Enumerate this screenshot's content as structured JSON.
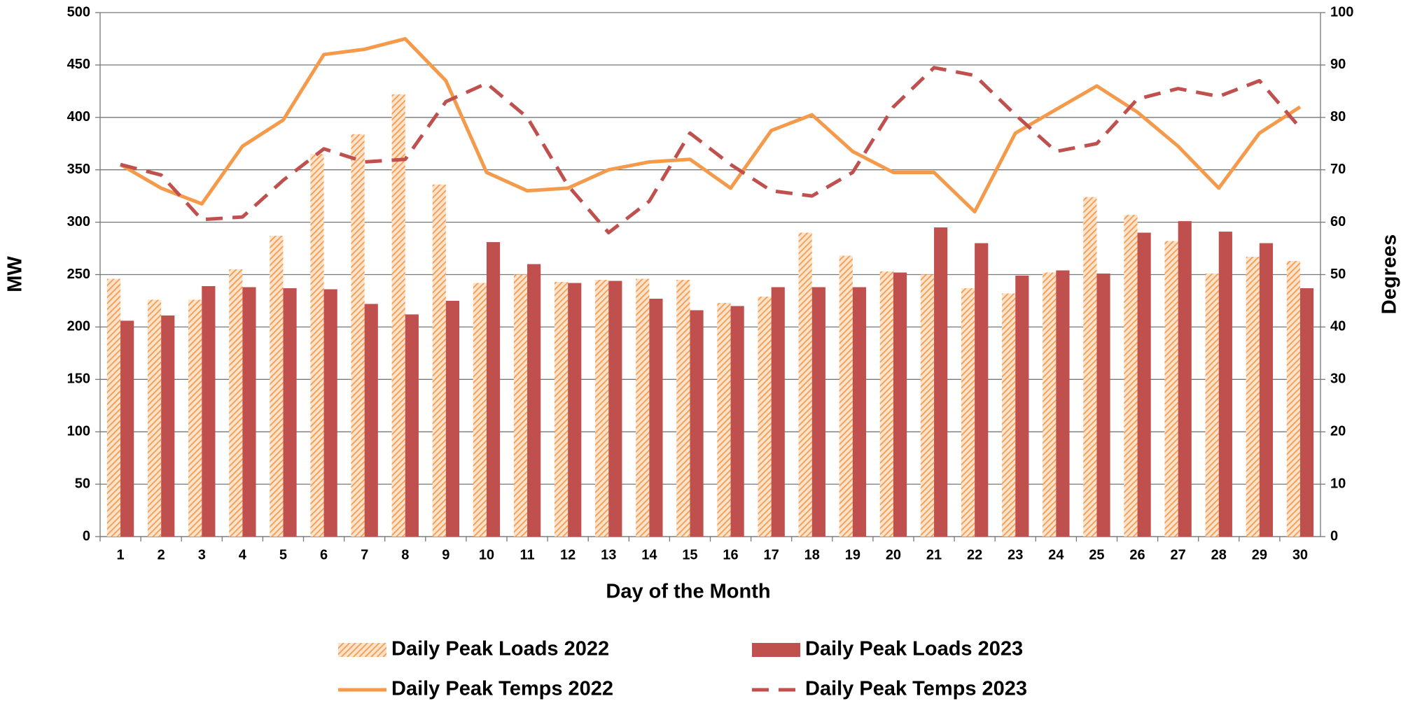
{
  "chart_data": {
    "type": "combo",
    "x_label": "Day of the Month",
    "y_label": "MW",
    "y2_label": "Degrees",
    "categories": [
      "1",
      "2",
      "3",
      "4",
      "5",
      "6",
      "7",
      "8",
      "9",
      "10",
      "11",
      "12",
      "13",
      "14",
      "15",
      "16",
      "17",
      "18",
      "19",
      "20",
      "21",
      "22",
      "23",
      "24",
      "25",
      "26",
      "27",
      "28",
      "29",
      "30"
    ],
    "ylim": [
      0,
      500
    ],
    "yticks": [
      0,
      50,
      100,
      150,
      200,
      250,
      300,
      350,
      400,
      450,
      500
    ],
    "y2lim": [
      0,
      100
    ],
    "y2ticks": [
      0,
      10,
      20,
      30,
      40,
      50,
      60,
      70,
      80,
      90,
      100
    ],
    "grid": true,
    "legend": "bottom",
    "series": [
      {
        "name": "Daily Peak Loads 2022",
        "type": "bar",
        "pattern": "hatch",
        "color": "#f59a4a",
        "values": [
          246,
          226,
          226,
          255,
          287,
          365,
          384,
          422,
          336,
          242,
          250,
          243,
          245,
          246,
          245,
          223,
          229,
          290,
          268,
          253,
          250,
          237,
          232,
          252,
          324,
          307,
          282,
          251,
          267,
          263
        ]
      },
      {
        "name": "Daily Peak Loads 2023",
        "type": "bar",
        "color": "#c0504d",
        "values": [
          206,
          211,
          239,
          238,
          237,
          236,
          222,
          212,
          225,
          281,
          260,
          242,
          244,
          227,
          216,
          220,
          238,
          238,
          238,
          252,
          295,
          280,
          249,
          254,
          251,
          290,
          301,
          291,
          280,
          237
        ]
      },
      {
        "name": "Daily Peak Temps 2022",
        "type": "line",
        "axis": "y2",
        "color": "#f59a4a",
        "values": [
          71,
          66.5,
          63.5,
          74.5,
          79.5,
          92,
          93,
          95,
          87,
          69.5,
          66,
          66.5,
          70,
          71.5,
          72,
          66.5,
          77.5,
          80.5,
          73.5,
          69.5,
          69.5,
          62,
          77,
          81.5,
          86,
          81,
          74.5,
          66.5,
          77,
          82
        ]
      },
      {
        "name": "Daily Peak Temps 2023",
        "type": "line",
        "axis": "y2",
        "dash": true,
        "color": "#c0504d",
        "values": [
          71,
          69,
          60.5,
          61,
          68,
          74,
          71.5,
          72,
          83,
          86.5,
          80,
          67,
          58,
          64,
          77,
          71,
          66,
          65,
          69.5,
          82,
          89.5,
          88,
          80.5,
          73.5,
          75,
          83.5,
          85.5,
          84,
          87,
          78
        ]
      }
    ]
  }
}
